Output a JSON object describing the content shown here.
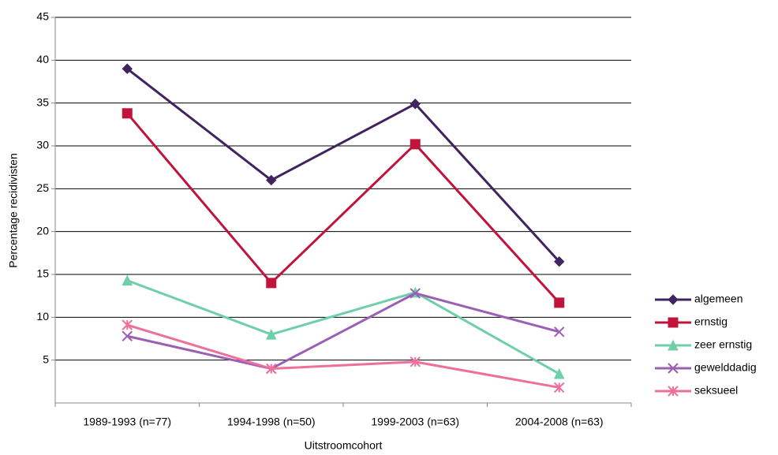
{
  "chart_data": {
    "type": "line",
    "x_label": "Uitstroomcohort",
    "y_label": "Percentage recidivisten",
    "categories": [
      "1989-1993 (n=77)",
      "1994-1998 (n=50)",
      "1999-2003 (n=63)",
      "2004-2008 (n=63)"
    ],
    "series": [
      {
        "name": "algemeen",
        "color": "#40235f",
        "marker": "diamond",
        "values": [
          39,
          26,
          34.9,
          16.5
        ]
      },
      {
        "name": "ernstig",
        "color": "#c0143c",
        "marker": "square",
        "values": [
          33.8,
          14,
          30.2,
          11.7
        ]
      },
      {
        "name": "zeer ernstig",
        "color": "#6fcfa8",
        "marker": "triangle",
        "values": [
          14.3,
          8,
          12.9,
          3.4
        ]
      },
      {
        "name": "gewelddadig",
        "color": "#9b5fb5",
        "marker": "x",
        "values": [
          7.8,
          4,
          12.8,
          8.3
        ]
      },
      {
        "name": "seksueel",
        "color": "#ee6f9a",
        "marker": "star",
        "values": [
          9.1,
          4,
          4.8,
          1.8
        ]
      }
    ],
    "ylim": [
      0,
      45
    ],
    "yticks": [
      5,
      10,
      15,
      20,
      25,
      30,
      35,
      40,
      45
    ],
    "grid": true,
    "legend": "right"
  }
}
